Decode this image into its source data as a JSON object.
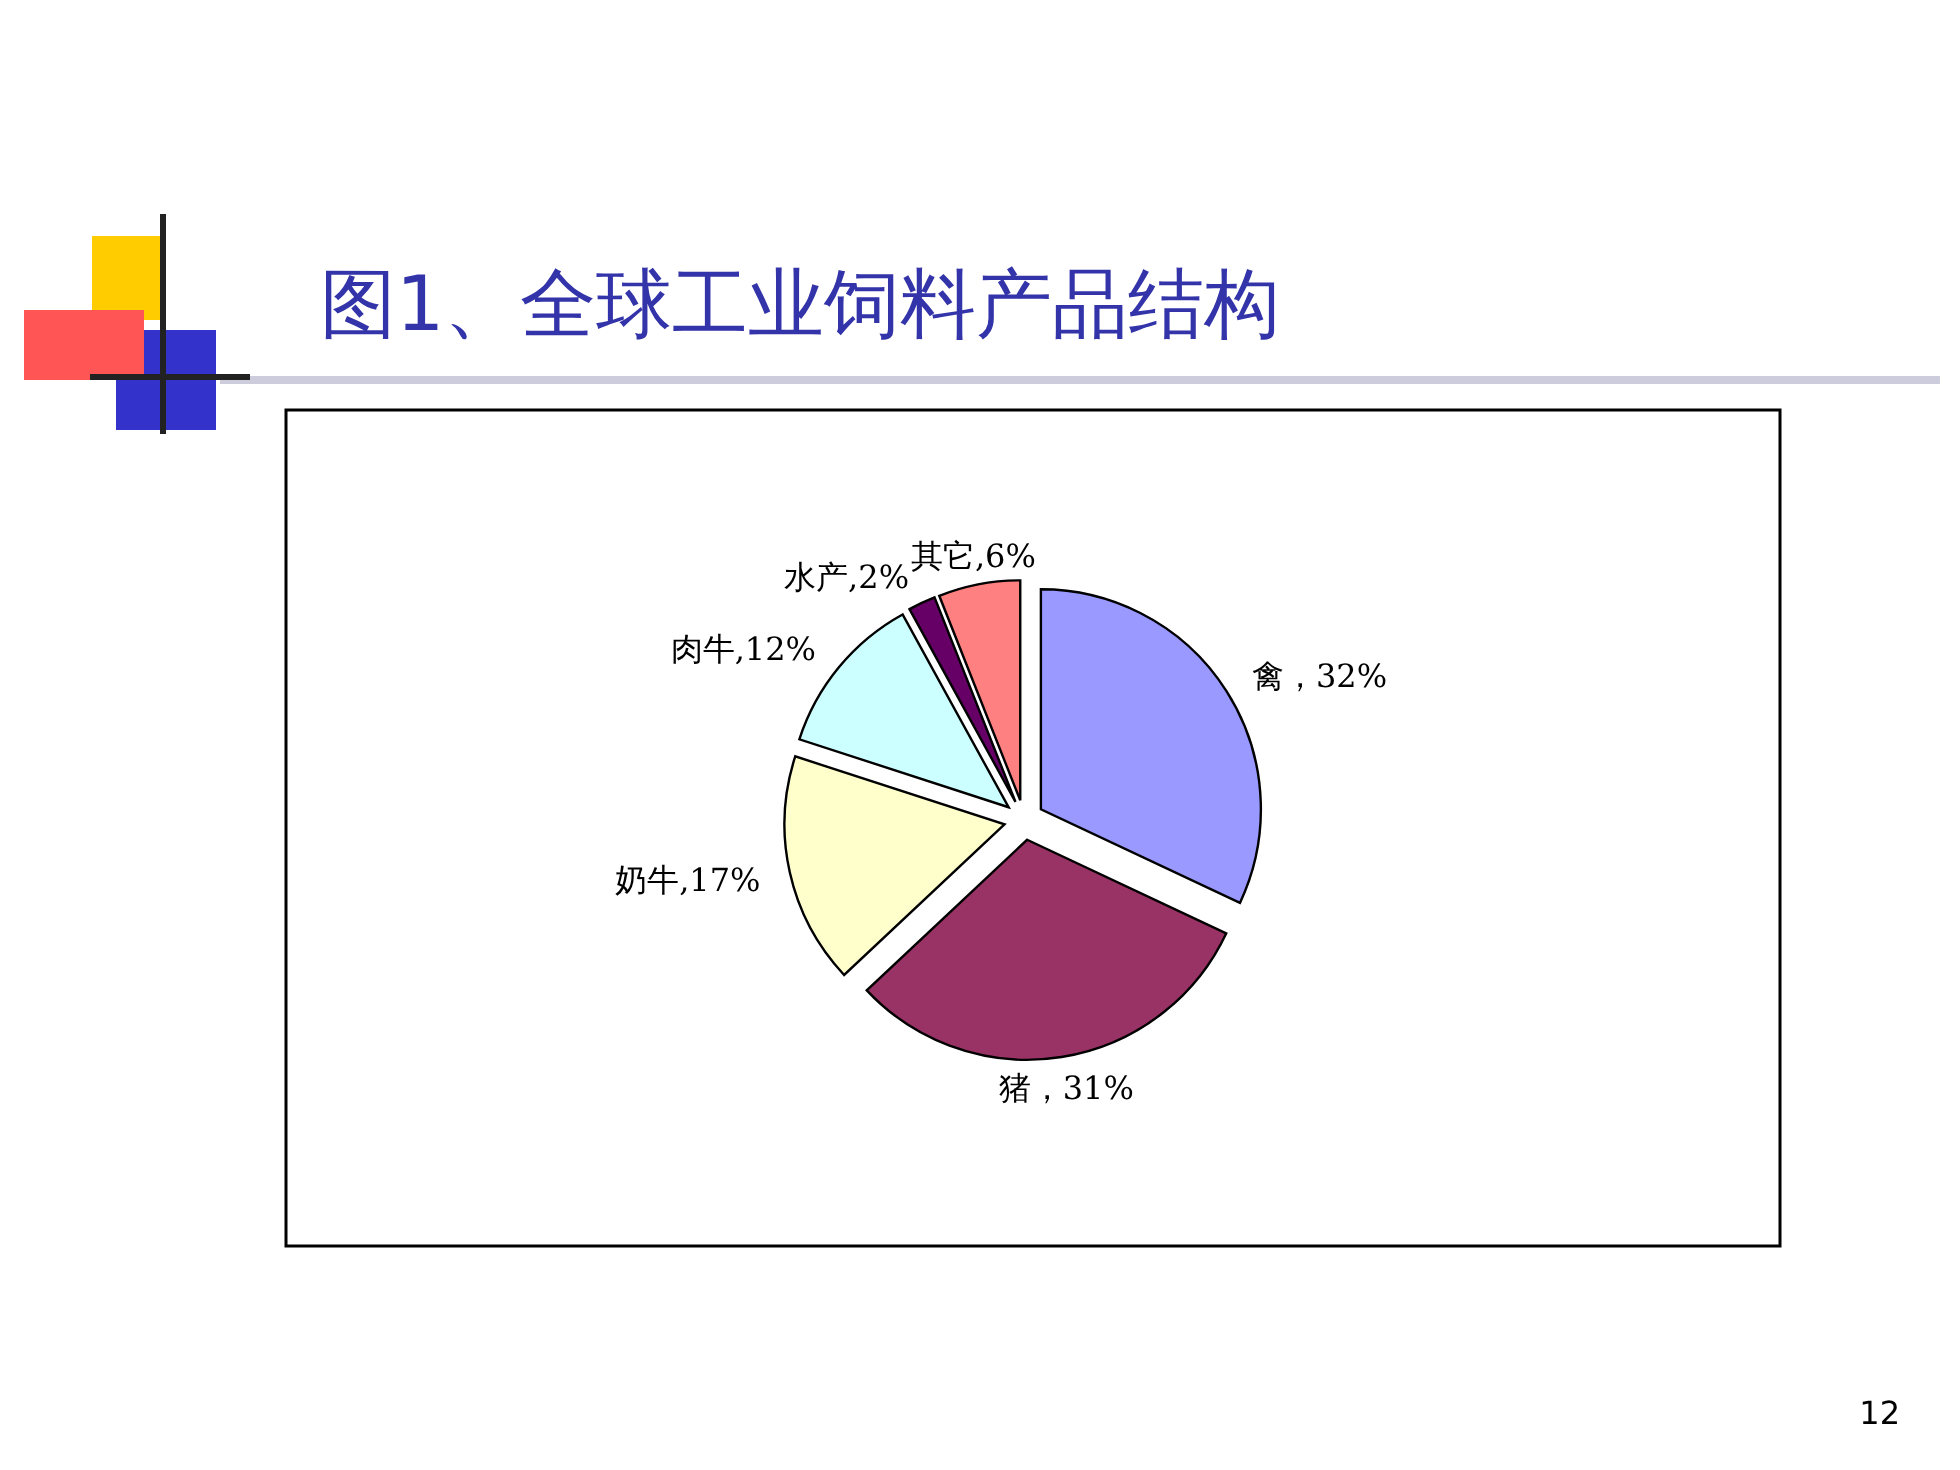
{
  "chart_data": {
    "type": "pie",
    "title": "图1、全球工业饲料产品结构",
    "categories": [
      "禽",
      "猪",
      "奶牛",
      "肉牛",
      "水产",
      "其它"
    ],
    "values": [
      32,
      31,
      17,
      12,
      2,
      6
    ],
    "colors": [
      "#9999ff",
      "#993366",
      "#ffffcc",
      "#ccffff",
      "#660066",
      "#ff8080"
    ],
    "value_labels": [
      "，32%",
      "，31%",
      ",17%",
      ",12%",
      ",2%",
      ",6%"
    ],
    "annotations": [
      "12"
    ]
  }
}
